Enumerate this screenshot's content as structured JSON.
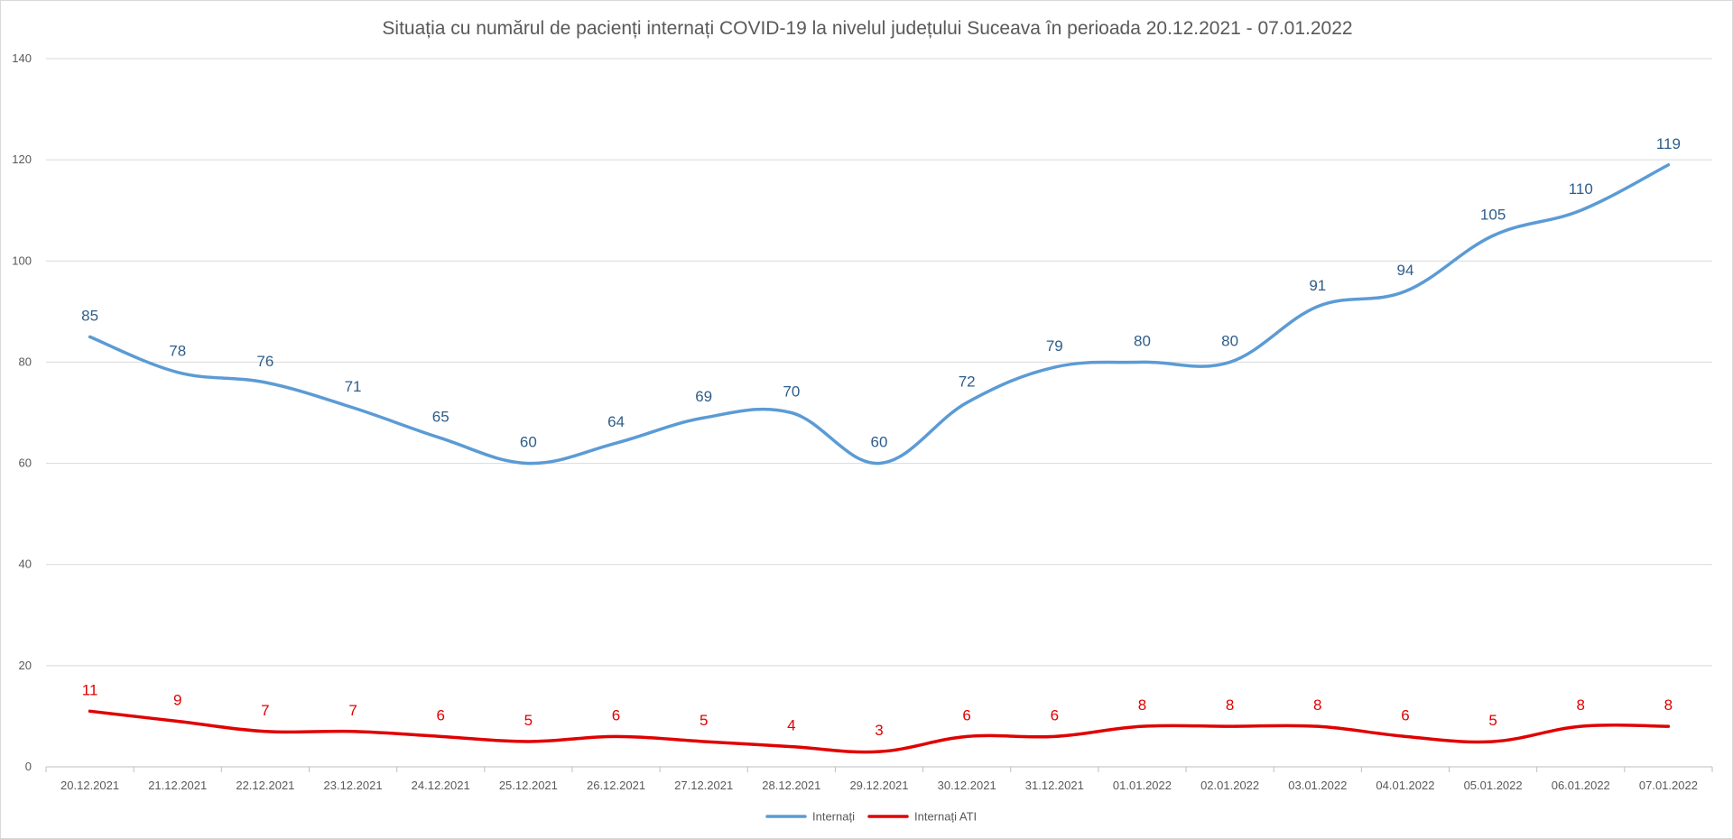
{
  "chart_data": {
    "type": "line",
    "title": "Situația cu numărul de pacienți internați COVID-19 la nivelul județului Suceava în perioada 20.12.2021 - 07.01.2022",
    "xlabel": "",
    "ylabel": "",
    "ylim": [
      0,
      140
    ],
    "yticks": [
      0,
      20,
      40,
      60,
      80,
      100,
      120,
      140
    ],
    "grid": true,
    "smooth": true,
    "legend_position": "bottom",
    "categories": [
      "20.12.2021",
      "21.12.2021",
      "22.12.2021",
      "23.12.2021",
      "24.12.2021",
      "25.12.2021",
      "26.12.2021",
      "27.12.2021",
      "28.12.2021",
      "29.12.2021",
      "30.12.2021",
      "31.12.2021",
      "01.01.2022",
      "02.01.2022",
      "03.01.2022",
      "04.01.2022",
      "05.01.2022",
      "06.01.2022",
      "07.01.2022"
    ],
    "series": [
      {
        "name": "Internați",
        "color": "#5b9bd5",
        "label_color": "#2f5d8a",
        "values": [
          85,
          78,
          76,
          71,
          65,
          60,
          64,
          69,
          70,
          60,
          72,
          79,
          80,
          80,
          91,
          94,
          105,
          110,
          119
        ]
      },
      {
        "name": "Internați ATI",
        "color": "#e00000",
        "label_color": "#e00000",
        "values": [
          11,
          9,
          7,
          7,
          6,
          5,
          6,
          5,
          4,
          3,
          6,
          6,
          8,
          8,
          8,
          6,
          5,
          8,
          8
        ]
      }
    ]
  }
}
